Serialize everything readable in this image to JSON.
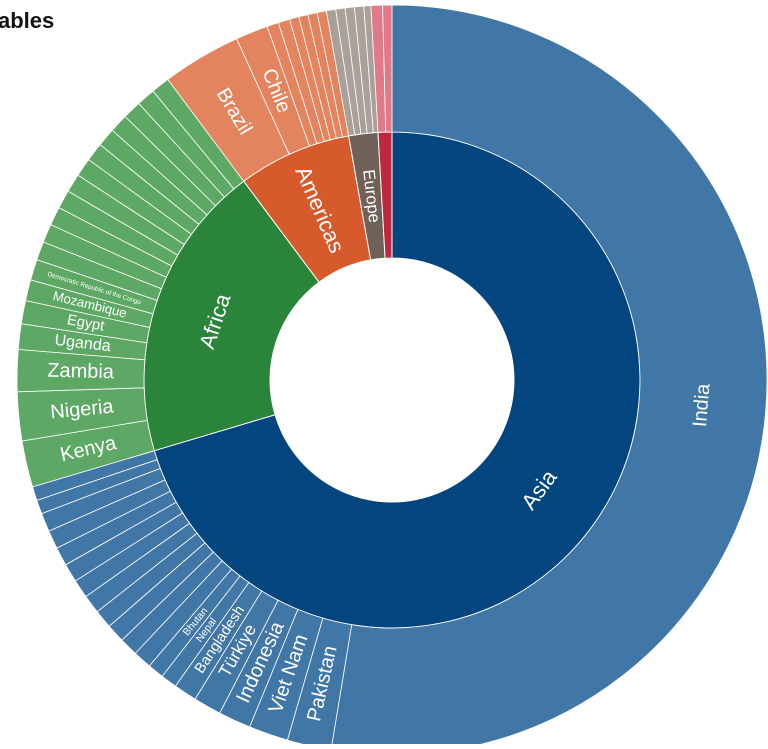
{
  "chart_data": {
    "type": "sunburst",
    "title": "ables",
    "nodes": [
      {
        "name": "Asia",
        "value": 70.4,
        "color": "#03467f",
        "child_color": "#4177a6",
        "children": [
          {
            "name": "India",
            "value": 52.6
          },
          {
            "name": "Pakistan",
            "value": 1.9
          },
          {
            "name": "Viet Nam",
            "value": 1.7
          },
          {
            "name": "Indonesia",
            "value": 1.4
          },
          {
            "name": "Türkiye",
            "value": 1.2
          },
          {
            "name": "Bangladesh",
            "value": 1.0
          },
          {
            "name": "Nepal",
            "value": 0.7
          },
          {
            "name": "Bhutan",
            "value": 0.7
          },
          {
            "name": null,
            "value": 0.8
          },
          {
            "name": null,
            "value": 0.8
          },
          {
            "name": null,
            "value": 0.8
          },
          {
            "name": null,
            "value": 0.8
          },
          {
            "name": null,
            "value": 0.8
          },
          {
            "name": null,
            "value": 0.8
          },
          {
            "name": null,
            "value": 0.8
          },
          {
            "name": null,
            "value": 0.8
          },
          {
            "name": null,
            "value": 0.8
          },
          {
            "name": null,
            "value": 0.8
          },
          {
            "name": null,
            "value": 0.6
          },
          {
            "name": null,
            "value": 0.6
          }
        ]
      },
      {
        "name": "Africa",
        "value": 19.4,
        "color": "#2a8439",
        "child_color": "#5ea865",
        "children": [
          {
            "name": "Kenya",
            "value": 2.0
          },
          {
            "name": "Nigeria",
            "value": 2.1
          },
          {
            "name": "Zambia",
            "value": 1.8
          },
          {
            "name": "Uganda",
            "value": 1.1
          },
          {
            "name": "Egypt",
            "value": 1.0
          },
          {
            "name": "Mozambique",
            "value": 0.9
          },
          {
            "name": "Democratic Republic of the Congo",
            "value": 0.9
          },
          {
            "name": null,
            "value": 0.8
          },
          {
            "name": null,
            "value": 0.8
          },
          {
            "name": null,
            "value": 0.8
          },
          {
            "name": null,
            "value": 0.8
          },
          {
            "name": null,
            "value": 0.8
          },
          {
            "name": null,
            "value": 0.8
          },
          {
            "name": null,
            "value": 0.8
          },
          {
            "name": null,
            "value": 0.8
          },
          {
            "name": null,
            "value": 0.8
          },
          {
            "name": null,
            "value": 0.8
          },
          {
            "name": null,
            "value": 0.8
          },
          {
            "name": null,
            "value": 0.8
          }
        ]
      },
      {
        "name": "Americas",
        "value": 7.4,
        "color": "#d65a2b",
        "child_color": "#e3845f",
        "children": [
          {
            "name": "Brazil",
            "value": 3.4
          },
          {
            "name": "Chile",
            "value": 1.4
          },
          {
            "name": null,
            "value": 0.5
          },
          {
            "name": null,
            "value": 0.5
          },
          {
            "name": null,
            "value": 0.4
          },
          {
            "name": null,
            "value": 0.4
          },
          {
            "name": null,
            "value": 0.4
          },
          {
            "name": null,
            "value": 0.4
          }
        ]
      },
      {
        "name": "Europe",
        "value": 1.9,
        "color": "#6f6157",
        "child_color": "#a9a09a",
        "children": [
          {
            "name": null,
            "value": 0.4
          },
          {
            "name": null,
            "value": 0.4
          },
          {
            "name": null,
            "value": 0.4
          },
          {
            "name": null,
            "value": 0.4
          },
          {
            "name": null,
            "value": 0.3
          }
        ]
      },
      {
        "name": null,
        "value": 0.9,
        "color": "#c0263d",
        "child_color": "#e07a8a",
        "children": [
          {
            "name": null,
            "value": 0.5
          },
          {
            "name": null,
            "value": 0.4
          }
        ]
      }
    ]
  }
}
